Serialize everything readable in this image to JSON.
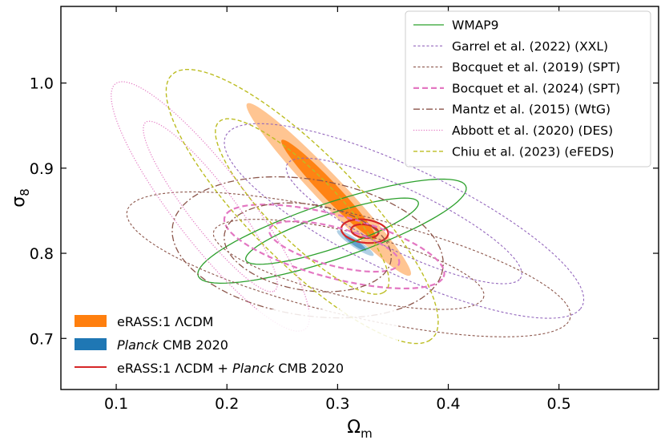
{
  "chart_data": {
    "type": "contour",
    "title": "",
    "xlabel": "Ω",
    "xlabel_sub": "m",
    "ylabel": "σ",
    "ylabel_sub": "8",
    "xlim": [
      0.05,
      0.59
    ],
    "ylim": [
      0.64,
      1.09
    ],
    "xticks": [
      0.1,
      0.2,
      0.3,
      0.4,
      0.5
    ],
    "xtick_labels": [
      "0.1",
      "0.2",
      "0.3",
      "0.4",
      "0.5"
    ],
    "yticks": [
      0.7,
      0.8,
      0.9,
      1.0
    ],
    "ytick_labels": [
      "0.7",
      "0.8",
      "0.9",
      "1.0"
    ],
    "grid": false,
    "legend_top": {
      "placement": "top-right",
      "entries": [
        {
          "label": "WMAP9",
          "color": "#2ca02c",
          "style": "solid"
        },
        {
          "label": "Garrel et al. (2022) (XXL)",
          "color": "#9467bd",
          "style": "dashed-fine"
        },
        {
          "label": "Bocquet et al. (2019) (SPT)",
          "color": "#8c564b",
          "style": "dashed-fine"
        },
        {
          "label": "Bocquet et al. (2024) (SPT)",
          "color": "#e377c2",
          "style": "dashed-thick"
        },
        {
          "label": "Mantz et al. (2015) (WtG)",
          "color": "#8c564b",
          "style": "dashdot"
        },
        {
          "label": "Abbott et al. (2020) (DES)",
          "color": "#e377c2",
          "style": "dotted"
        },
        {
          "label": "Chiu et al. (2023) (eFEDS)",
          "color": "#bcbd22",
          "style": "dashed"
        }
      ]
    },
    "legend_bottom": {
      "placement": "bottom-left",
      "entries": [
        {
          "label": "eRASS:1 ΛCDM",
          "color": "#ff7f0e",
          "style": "filled"
        },
        {
          "label_italic": "Planck",
          "label_rest": " CMB 2020",
          "color": "#1f77b4",
          "style": "filled"
        },
        {
          "label_pre": "eRASS:1 ΛCDM + ",
          "label_italic": "Planck",
          "label_rest": " CMB 2020",
          "color": "#d62728",
          "style": "solid"
        }
      ]
    },
    "series": [
      {
        "name": "eRASS:1 ΛCDM",
        "color": "#ff7f0e",
        "kind": "filled",
        "cx": 0.292,
        "cy": 0.875,
        "contours": [
          {
            "level": "95%",
            "a": 0.125,
            "b": 0.014,
            "angle_deg": -54,
            "opacity": 0.45
          },
          {
            "level": "68%",
            "a": 0.072,
            "b": 0.0085,
            "angle_deg": -54,
            "opacity": 0.95
          }
        ]
      },
      {
        "name": "Planck CMB 2020",
        "color": "#1f77b4",
        "kind": "filled",
        "cx": 0.316,
        "cy": 0.812,
        "contours": [
          {
            "level": "95%",
            "a": 0.022,
            "b": 0.0045,
            "angle_deg": -42,
            "opacity": 0.35
          },
          {
            "level": "68%",
            "a": 0.013,
            "b": 0.0028,
            "angle_deg": -42,
            "opacity": 0.55
          }
        ]
      },
      {
        "name": "eRASS:1 ΛCDM + Planck CMB 2020",
        "color": "#d62728",
        "kind": "line",
        "cx": 0.3245,
        "cy": 0.826,
        "contours": [
          {
            "level": "95%",
            "a": 0.0215,
            "b": 0.0135,
            "angle_deg": -12
          },
          {
            "level": "68%",
            "a": 0.0125,
            "b": 0.0078,
            "angle_deg": -12
          }
        ]
      },
      {
        "name": "WMAP9",
        "color": "#2ca02c",
        "kind": "line",
        "cx": 0.295,
        "cy": 0.826,
        "contours": [
          {
            "level": "95%",
            "a": 0.132,
            "b": 0.032,
            "angle_deg": 24
          },
          {
            "level": "68%",
            "a": 0.085,
            "b": 0.0195,
            "angle_deg": 24
          }
        ]
      },
      {
        "name": "Garrel et al. (2022) (XXL)",
        "color": "#9467bd",
        "kind": "line",
        "cx": 0.36,
        "cy": 0.838,
        "contours": [
          {
            "level": "95%",
            "a": 0.19,
            "b": 0.058,
            "angle_deg": -33
          },
          {
            "level": "68%",
            "a": 0.125,
            "b": 0.034,
            "angle_deg": -33
          }
        ]
      },
      {
        "name": "Bocquet et al. (2019) (SPT)",
        "color": "#8c564b",
        "kind": "line",
        "cx": 0.31,
        "cy": 0.787,
        "contours": [
          {
            "level": "95%",
            "a": 0.21,
            "b": 0.058,
            "angle_deg": -18
          },
          {
            "level": "68%",
            "a": 0.128,
            "b": 0.037,
            "angle_deg": -18
          }
        ]
      },
      {
        "name": "Bocquet et al. (2024) (SPT)",
        "color": "#e377c2",
        "kind": "line",
        "cx": 0.297,
        "cy": 0.808,
        "contours": [
          {
            "level": "95%",
            "a": 0.105,
            "b": 0.036,
            "angle_deg": -20
          },
          {
            "level": "68%",
            "a": 0.062,
            "b": 0.022,
            "angle_deg": -20
          }
        ]
      },
      {
        "name": "Mantz et al. (2015) (WtG)",
        "color": "#8c564b",
        "kind": "line",
        "cx": 0.273,
        "cy": 0.807,
        "contours": [
          {
            "level": "95%",
            "a": 0.125,
            "b": 0.079,
            "angle_deg": -15
          },
          {
            "level": "68%",
            "a": 0.077,
            "b": 0.05,
            "angle_deg": -15
          }
        ]
      },
      {
        "name": "Abbott et al. (2020) (DES)",
        "color": "#e377c2",
        "kind": "line",
        "cx": 0.185,
        "cy": 0.855,
        "contours": [
          {
            "level": "95%",
            "a": 0.168,
            "b": 0.036,
            "angle_deg": -60
          },
          {
            "level": "68%",
            "a": 0.115,
            "b": 0.022,
            "angle_deg": -60
          }
        ]
      },
      {
        "name": "Chiu et al. (2023) (eFEDS)",
        "color": "#bcbd22",
        "kind": "line",
        "cx": 0.268,
        "cy": 0.855,
        "contours": [
          {
            "level": "95%",
            "a": 0.195,
            "b": 0.055,
            "angle_deg": -54
          },
          {
            "level": "68%",
            "a": 0.125,
            "b": 0.034,
            "angle_deg": -54
          }
        ]
      }
    ]
  }
}
